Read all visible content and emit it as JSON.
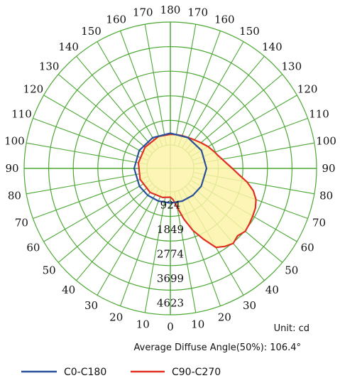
{
  "chart_data": {
    "type": "polar",
    "angle_labels_left": [
      "0",
      "10",
      "20",
      "30",
      "40",
      "50",
      "60",
      "70",
      "80",
      "90",
      "100",
      "110",
      "120",
      "130",
      "140",
      "150",
      "160",
      "170",
      "180"
    ],
    "angle_labels_right": [
      "10",
      "20",
      "30",
      "40",
      "50",
      "60",
      "70",
      "80",
      "90",
      "100",
      "110",
      "120",
      "130",
      "140",
      "150",
      "160",
      "170"
    ],
    "radial_ticks": [
      "924",
      "1849",
      "2774",
      "3699",
      "4623"
    ],
    "r_max": 4623,
    "grid": true,
    "series": [
      {
        "name": "C0-C180",
        "color": "#2a4f9a",
        "points": [
          [
            0,
            420
          ],
          [
            20,
            425
          ],
          [
            40,
            440
          ],
          [
            60,
            460
          ],
          [
            90,
            480
          ],
          [
            120,
            470
          ],
          [
            150,
            450
          ],
          [
            180,
            440
          ],
          [
            210,
            450
          ],
          [
            240,
            470
          ],
          [
            270,
            480
          ],
          [
            300,
            460
          ],
          [
            320,
            440
          ],
          [
            340,
            425
          ],
          [
            360,
            420
          ]
        ]
      },
      {
        "name": "C90-C270",
        "color": "#e03020",
        "fill": "#fbf3a8",
        "points": [
          [
            0,
            200
          ],
          [
            5,
            300
          ],
          [
            10,
            600
          ],
          [
            15,
            1100
          ],
          [
            20,
            1600
          ],
          [
            25,
            2050
          ],
          [
            30,
            2550
          ],
          [
            35,
            2700
          ],
          [
            40,
            2800
          ],
          [
            45,
            2700
          ],
          [
            50,
            2800
          ],
          [
            55,
            2750
          ],
          [
            60,
            2700
          ],
          [
            65,
            2650
          ],
          [
            70,
            2550
          ],
          [
            75,
            2350
          ],
          [
            80,
            2050
          ],
          [
            85,
            1700
          ],
          [
            90,
            1450
          ],
          [
            95,
            1250
          ],
          [
            100,
            1100
          ],
          [
            105,
            980
          ],
          [
            110,
            900
          ],
          [
            115,
            820
          ],
          [
            120,
            760
          ],
          [
            130,
            620
          ],
          [
            140,
            520
          ],
          [
            150,
            460
          ],
          [
            160,
            430
          ],
          [
            170,
            410
          ],
          [
            180,
            400
          ],
          [
            200,
            400
          ],
          [
            230,
            360
          ],
          [
            260,
            340
          ],
          [
            290,
            330
          ],
          [
            320,
            300
          ],
          [
            345,
            250
          ],
          [
            360,
            200
          ]
        ]
      }
    ]
  },
  "footer": {
    "unit": "Unit: cd",
    "average": "Average Diffuse Angle(50%): 106.4°"
  },
  "legend": [
    {
      "label": "C0-C180",
      "color": "#2a4f9a"
    },
    {
      "label": "C90-C270",
      "color": "#e03020"
    }
  ],
  "grid_color": "#4aa832"
}
